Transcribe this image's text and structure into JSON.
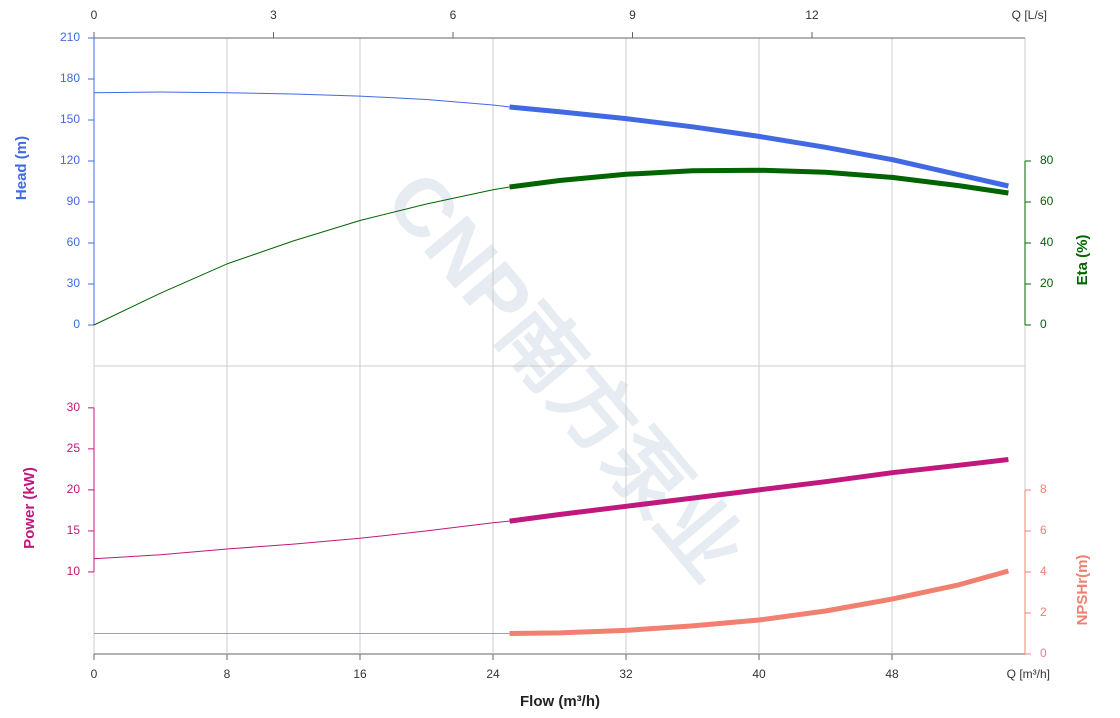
{
  "chart_data": {
    "type": "line",
    "watermark": "CNP南方泵业",
    "xlabel": "Flow (m³/h)",
    "x_unit_label": "Q [m³/h]",
    "xlim": [
      0,
      56
    ],
    "xticks": [
      0,
      8,
      16,
      24,
      32,
      40,
      48
    ],
    "x2_unit_label": "Q [L/s]",
    "x2lim": [
      0,
      15.56
    ],
    "x2ticks": [
      0,
      3,
      6,
      9,
      12
    ],
    "grid": true,
    "highlight_xmin": 25,
    "x": [
      0,
      4,
      8,
      12,
      16,
      20,
      24,
      25,
      28,
      32,
      36,
      40,
      44,
      48,
      52,
      55
    ],
    "series": [
      {
        "name": "Head (m)",
        "color": "#4169e1",
        "axis": "y",
        "ylim": [
          -30,
          210
        ],
        "yticks": [
          0,
          30,
          60,
          90,
          120,
          150,
          180,
          210
        ],
        "values": [
          170,
          170.5,
          170,
          169,
          167.5,
          165,
          161,
          159.5,
          156,
          151,
          145,
          138,
          130,
          121,
          110,
          101.7
        ]
      },
      {
        "name": "Eta (%)",
        "color": "#006400",
        "axis": "y2",
        "ylim": [
          -20,
          140
        ],
        "yticks": [
          0,
          20,
          40,
          60,
          80
        ],
        "values": [
          0,
          15.5,
          29.8,
          41,
          51,
          59,
          66,
          67.3,
          70.5,
          73.5,
          75.2,
          75.5,
          74.5,
          72,
          68,
          64.4
        ]
      },
      {
        "name": "Power (kW)",
        "color": "#c0187c",
        "axis": "y",
        "ylim": [
          0,
          35.1
        ],
        "yticks": [
          10,
          15,
          20,
          25,
          30
        ],
        "values": [
          11.6,
          12.1,
          12.8,
          13.4,
          14.1,
          15,
          16,
          16.2,
          17,
          18,
          19,
          20,
          21,
          22.1,
          23,
          23.7
        ]
      },
      {
        "name": "NPSHr(m)",
        "color": "#f08070",
        "axis": "y2",
        "ylim": [
          0,
          14.05
        ],
        "yticks": [
          0,
          2,
          4,
          6,
          8
        ],
        "values": [
          1,
          1,
          1,
          1,
          1,
          1,
          1,
          1,
          1.03,
          1.15,
          1.37,
          1.66,
          2.1,
          2.68,
          3.37,
          4.05
        ]
      }
    ]
  }
}
